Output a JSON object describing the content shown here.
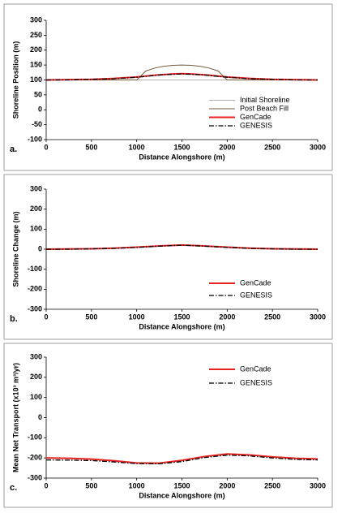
{
  "chart_data": [
    {
      "type": "line",
      "label": "a.",
      "ylabel": "Shoreline Position (m)",
      "xlabel": "Distance Alongshore (m)",
      "x": [
        0,
        250,
        500,
        750,
        1000,
        1100,
        1200,
        1300,
        1400,
        1500,
        1600,
        1700,
        1800,
        1900,
        2000,
        2250,
        2500,
        2750,
        3000
      ],
      "series": [
        {
          "name": "Initial Shoreline",
          "color": "#b0b0b0",
          "width": 1,
          "dash": "solid",
          "values": [
            100,
            100,
            100,
            100,
            100,
            100,
            100,
            100,
            100,
            100,
            100,
            100,
            100,
            100,
            100,
            100,
            100,
            100,
            100
          ]
        },
        {
          "name": "Post Beach Fill",
          "color": "#7a5a3a",
          "width": 1,
          "dash": "solid",
          "values": [
            100,
            100,
            100,
            100,
            100,
            130,
            140,
            146,
            149,
            150,
            149,
            146,
            140,
            130,
            100,
            100,
            100,
            100,
            100
          ]
        },
        {
          "name": "GenCade",
          "color": "#e8231f",
          "width": 2,
          "dash": "solid",
          "values": [
            100,
            101,
            102,
            105,
            110,
            113,
            116,
            118,
            120,
            121,
            120,
            118,
            116,
            113,
            110,
            105,
            102,
            101,
            100
          ]
        },
        {
          "name": "GENESIS",
          "color": "#000000",
          "width": 1.3,
          "dash": "dashdot",
          "values": [
            100,
            100,
            102,
            104,
            109,
            112,
            115,
            118,
            119,
            120,
            119,
            118,
            115,
            112,
            109,
            104,
            102,
            100,
            100
          ]
        }
      ],
      "xlim": [
        0,
        3000
      ],
      "xticks": [
        0,
        500,
        1000,
        1500,
        2000,
        2500,
        3000
      ],
      "ylim": [
        -100,
        300
      ],
      "yticks": [
        -100,
        -50,
        0,
        50,
        100,
        150,
        200,
        250,
        300
      ],
      "legend": "lower right",
      "grid": false
    },
    {
      "type": "line",
      "label": "b.",
      "ylabel": "Shoreline Change (m)",
      "xlabel": "Distance Alongshore (m)",
      "x": [
        0,
        250,
        500,
        750,
        1000,
        1250,
        1500,
        1750,
        2000,
        2250,
        2500,
        2750,
        3000
      ],
      "series": [
        {
          "name": "GenCade",
          "color": "#e8231f",
          "width": 2,
          "dash": "solid",
          "values": [
            0,
            1,
            2,
            5,
            10,
            16,
            21,
            16,
            10,
            5,
            2,
            1,
            0
          ]
        },
        {
          "name": "GENESIS",
          "color": "#000000",
          "width": 1.3,
          "dash": "dashdot",
          "values": [
            0,
            0,
            2,
            4,
            9,
            15,
            20,
            15,
            9,
            4,
            2,
            0,
            0
          ]
        }
      ],
      "xlim": [
        0,
        3000
      ],
      "xticks": [
        0,
        500,
        1000,
        1500,
        2000,
        2500,
        3000
      ],
      "ylim": [
        -300,
        300
      ],
      "yticks": [
        -300,
        -200,
        -100,
        0,
        100,
        200,
        300
      ],
      "legend": "lower right",
      "grid": false
    },
    {
      "type": "line",
      "label": "c.",
      "ylabel": "Mean Net Transport (x10³ m³/yr)",
      "xlabel": "Distance Alongshore (m)",
      "x": [
        0,
        250,
        500,
        750,
        1000,
        1250,
        1500,
        1750,
        2000,
        2250,
        2500,
        2750,
        3000
      ],
      "series": [
        {
          "name": "GenCade",
          "color": "#e8231f",
          "width": 2,
          "dash": "solid",
          "values": [
            -200,
            -202,
            -206,
            -214,
            -225,
            -226,
            -212,
            -193,
            -180,
            -185,
            -195,
            -202,
            -205
          ]
        },
        {
          "name": "GENESIS",
          "color": "#000000",
          "width": 1.3,
          "dash": "dashdot",
          "values": [
            -210,
            -211,
            -213,
            -220,
            -228,
            -229,
            -218,
            -198,
            -186,
            -190,
            -200,
            -207,
            -210
          ]
        }
      ],
      "xlim": [
        0,
        3000
      ],
      "xticks": [
        0,
        500,
        1000,
        1500,
        2000,
        2500,
        3000
      ],
      "ylim": [
        -300,
        300
      ],
      "yticks": [
        -300,
        -200,
        -100,
        0,
        100,
        200,
        300
      ],
      "legend": "upper right",
      "grid": false
    }
  ]
}
